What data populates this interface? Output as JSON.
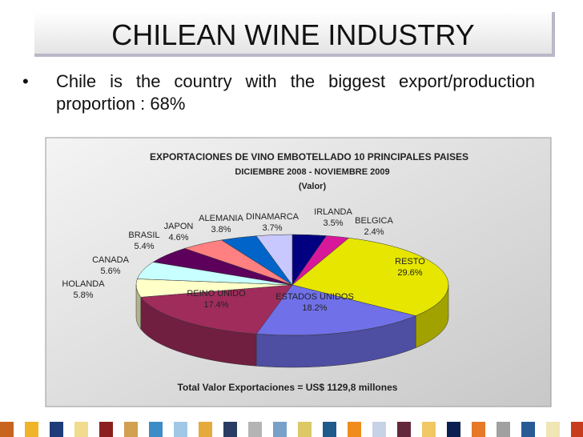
{
  "slide": {
    "title": "CHILEAN WINE INDUSTRY",
    "bullet": "Chile is the country with the biggest export/production proportion : 68%"
  },
  "chart_data": {
    "type": "pie",
    "title": "EXPORTACIONES DE VINO EMBOTELLADO 10 PRINCIPALES PAISES",
    "subtitle": [
      "DICIEMBRE 2008 - NOVIEMBRE 2009",
      "(Valor)"
    ],
    "annotation": "Total Valor Exportaciones = US$ 1129,8 millones",
    "categories": [
      "IRLANDA",
      "BELGICA",
      "RESTO",
      "ESTADOS UNIDOS",
      "REINO UNIDO",
      "HOLANDA",
      "CANADA",
      "BRASIL",
      "JAPON",
      "ALEMANIA",
      "DINAMARCA"
    ],
    "values": [
      3.5,
      2.4,
      29.6,
      18.2,
      17.4,
      5.8,
      5.6,
      5.4,
      4.6,
      3.8,
      3.7
    ],
    "value_labels": [
      "3.5%",
      "2.4%",
      "29.6%",
      "18.2%",
      "17.4%",
      "5.8%",
      "5.6%",
      "5.4%",
      "4.6%",
      "3.8%",
      "3.7%"
    ],
    "colors": [
      "#000080",
      "#d8189a",
      "#e6e600",
      "#7070e8",
      "#a02c5c",
      "#ffffc8",
      "#c8ffff",
      "#5c005c",
      "#ff8080",
      "#0064c8",
      "#c8c8ff"
    ]
  }
}
